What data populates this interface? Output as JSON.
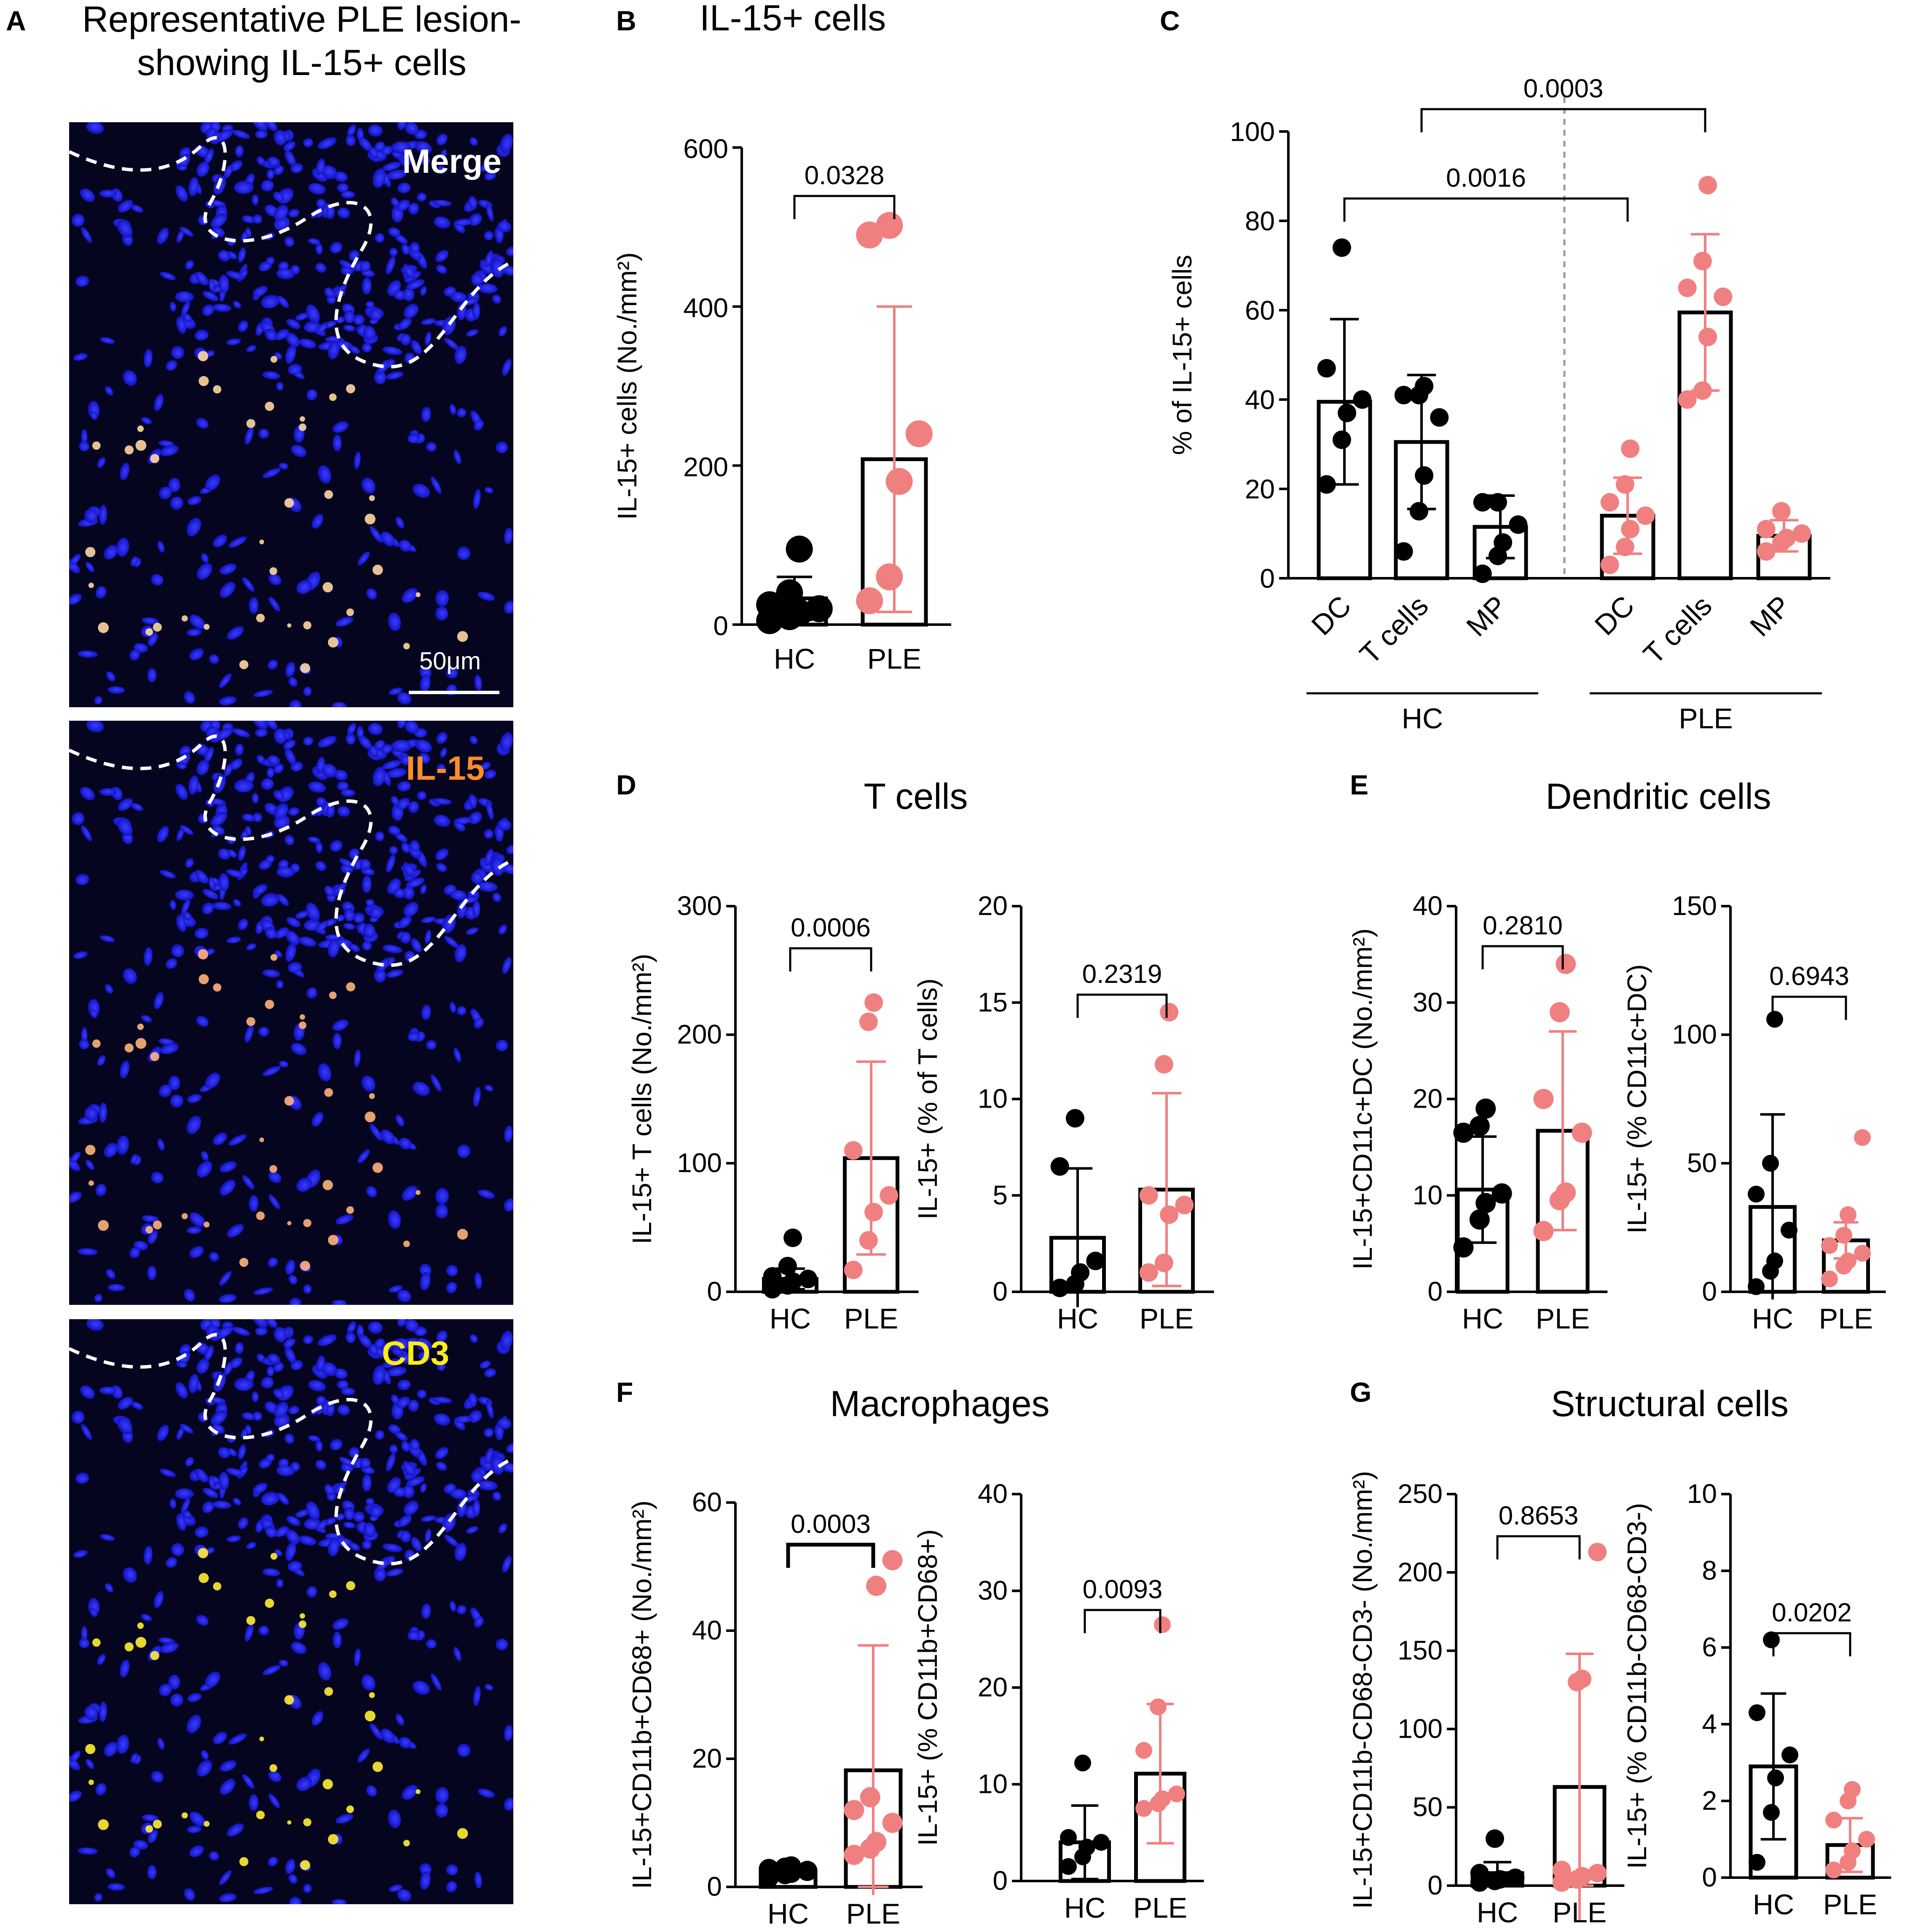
{
  "colors": {
    "hc": "#000000",
    "ple": "#f08080",
    "micro_bg": "#050520",
    "nuclei": "#1e22e6",
    "merge_label": "#ffffff",
    "il15_label": "#ff8c2a",
    "cd3_label": "#ffee11"
  },
  "panel_a": {
    "letter": "A",
    "title_line1": "Representative PLE lesion-",
    "title_line2": "showing IL-15+ cells",
    "images": [
      {
        "label": "Merge",
        "label_color": "#ffffff"
      },
      {
        "label": "IL-15",
        "label_color": "#ff8c2a"
      },
      {
        "label": "CD3",
        "label_color": "#ffee11"
      }
    ],
    "scalebar_label": "50μm"
  },
  "chart_data": [
    {
      "id": "B",
      "letter": "B",
      "type": "bar",
      "title": "IL-15+ cells",
      "ylabel": "IL-15+ cells (No./mm²)",
      "ylim": [
        0,
        600
      ],
      "yticks": [
        0,
        200,
        400,
        600
      ],
      "categories": [
        "HC",
        "PLE"
      ],
      "means": [
        33,
        208
      ],
      "err": [
        27,
        192
      ],
      "points": [
        [
          5,
          10,
          15,
          20,
          25,
          40,
          95
        ],
        [
          30,
          60,
          180,
          240,
          490,
          502
        ]
      ],
      "pvalues": [
        {
          "a": 0,
          "b": 1,
          "label": "0.0328"
        }
      ]
    },
    {
      "id": "C",
      "letter": "C",
      "type": "bar",
      "title": "",
      "ylabel": "% of IL-15+ cells",
      "ylim": [
        0,
        100
      ],
      "yticks": [
        0,
        20,
        40,
        60,
        80,
        100
      ],
      "categories": [
        "DC",
        "T cells",
        "MP",
        "DC",
        "T cells",
        "MP"
      ],
      "groups": [
        {
          "label": "HC",
          "from": 0,
          "to": 2
        },
        {
          "label": "PLE",
          "from": 3,
          "to": 5
        }
      ],
      "group_of_bar": [
        0,
        0,
        0,
        1,
        1,
        1
      ],
      "means": [
        39.5,
        30.5,
        11.5,
        14,
        59.5,
        9.5
      ],
      "err": [
        18.5,
        15,
        7,
        8.5,
        17.5,
        3.5
      ],
      "points": [
        [
          21,
          31,
          37,
          40,
          47,
          74
        ],
        [
          6,
          15,
          23,
          36,
          41,
          41,
          43
        ],
        [
          1,
          5,
          8,
          12,
          17,
          17
        ],
        [
          3,
          7,
          11,
          14,
          17,
          21,
          29
        ],
        [
          40,
          42,
          54,
          63,
          65,
          71,
          88
        ],
        [
          6,
          8,
          9,
          10,
          11,
          15
        ]
      ],
      "pvalues": [
        {
          "a": 0,
          "b": 3,
          "label": "0.0016",
          "level": 85
        },
        {
          "a": 1,
          "b": 4,
          "label": "0.0003",
          "level": 105
        }
      ]
    },
    {
      "id": "D1",
      "letter": "D",
      "type": "bar",
      "title": "T cells",
      "ylabel": "IL-15+ T cells (No./mm²)",
      "ylim": [
        0,
        300
      ],
      "yticks": [
        0,
        100,
        200,
        300
      ],
      "categories": [
        "HC",
        "PLE"
      ],
      "means": [
        10,
        104
      ],
      "err": [
        8,
        75
      ],
      "points": [
        [
          2,
          5,
          8,
          10,
          12,
          20,
          42
        ],
        [
          17,
          40,
          62,
          75,
          110,
          210,
          225
        ]
      ],
      "pvalues": [
        {
          "a": 0,
          "b": 1,
          "label": "0.0006"
        }
      ]
    },
    {
      "id": "D2",
      "letter": "",
      "type": "bar",
      "title": "",
      "ylabel": "IL-15+ (% of T cells)",
      "ylim": [
        0,
        20
      ],
      "yticks": [
        0,
        5,
        10,
        15,
        20
      ],
      "categories": [
        "HC",
        "PLE"
      ],
      "means": [
        2.8,
        5.3
      ],
      "err": [
        3.6,
        5.0
      ],
      "points": [
        [
          0.2,
          0.4,
          1.0,
          1.6,
          6.5,
          9.0
        ],
        [
          1.0,
          1.5,
          4.0,
          4.5,
          5.0,
          11.8,
          14.5
        ]
      ],
      "pvalues": [
        {
          "a": 0,
          "b": 1,
          "label": "0.2319"
        }
      ]
    },
    {
      "id": "E1",
      "letter": "E",
      "type": "bar",
      "title": "Dendritic cells",
      "ylabel": "IL-15+CD11c+DC (No./mm²)",
      "ylim": [
        0,
        40
      ],
      "yticks": [
        0,
        10,
        20,
        30,
        40
      ],
      "categories": [
        "HC",
        "PLE"
      ],
      "means": [
        10.6,
        16.7
      ],
      "err": [
        5.5,
        10.3
      ],
      "points": [
        [
          4.6,
          7.5,
          9.2,
          10.2,
          16.5,
          17.2,
          19.0
        ],
        [
          6.3,
          9.5,
          10.3,
          16.5,
          20.0,
          29.0,
          34.0
        ]
      ],
      "pvalues": [
        {
          "a": 0,
          "b": 1,
          "label": "0.2810"
        }
      ]
    },
    {
      "id": "E2",
      "letter": "",
      "type": "bar",
      "title": "",
      "ylabel": "IL-15+ (% CD11c+DC)",
      "ylim": [
        0,
        150
      ],
      "yticks": [
        0,
        50,
        100,
        150
      ],
      "categories": [
        "HC",
        "PLE"
      ],
      "means": [
        33,
        20
      ],
      "err": [
        36,
        7
      ],
      "points": [
        [
          2,
          8,
          12,
          24,
          38,
          50,
          106
        ],
        [
          5,
          10,
          12,
          15,
          18,
          22,
          30,
          60
        ]
      ],
      "pvalues": [
        {
          "a": 0,
          "b": 1,
          "label": "0.6943"
        }
      ]
    },
    {
      "id": "F1",
      "letter": "F",
      "type": "bar",
      "title": "Macrophages",
      "ylabel": "IL-15+CD11b+CD68+ (No./mm²)",
      "ylim": [
        0,
        60
      ],
      "yticks": [
        0,
        20,
        40,
        60
      ],
      "categories": [
        "HC",
        "PLE"
      ],
      "means": [
        2.5,
        18.2
      ],
      "err": [
        0.7,
        19.5
      ],
      "points": [
        [
          1.5,
          2.0,
          2.2,
          2.5,
          2.8,
          3.0,
          3.2
        ],
        [
          5.0,
          6.0,
          7.0,
          10.0,
          12.0,
          14.0,
          47.0,
          51.0
        ]
      ],
      "pvalues": [
        {
          "a": 0,
          "b": 1,
          "label": "0.0003"
        }
      ]
    },
    {
      "id": "F2",
      "letter": "",
      "type": "bar",
      "title": "",
      "ylabel": "IL-15+ (% CD11b+CD68+)",
      "ylim": [
        0,
        40
      ],
      "yticks": [
        0,
        10,
        20,
        30,
        40
      ],
      "categories": [
        "HC",
        "PLE"
      ],
      "means": [
        4.0,
        11.1
      ],
      "err": [
        3.8,
        7.2
      ],
      "points": [
        [
          1.5,
          2.5,
          3.5,
          4.0,
          4.5,
          12.2
        ],
        [
          7.5,
          8.0,
          8.5,
          9.0,
          13.5,
          18.0,
          26.5
        ]
      ],
      "pvalues": [
        {
          "a": 0,
          "b": 1,
          "label": "0.0093"
        }
      ]
    },
    {
      "id": "G1",
      "letter": "G",
      "type": "bar",
      "title": "Structural cells",
      "ylabel": "IL-15+CD11b-CD68-CD3- (No./mm²)",
      "ylim": [
        0,
        250
      ],
      "yticks": [
        0,
        50,
        100,
        150,
        200,
        250
      ],
      "categories": [
        "HC",
        "PLE"
      ],
      "means": [
        8,
        63
      ],
      "err": [
        7,
        85
      ],
      "points": [
        [
          2,
          3,
          4,
          5,
          8,
          30
        ],
        [
          2,
          4,
          6,
          8,
          10,
          130,
          132,
          213
        ]
      ],
      "pvalues": [
        {
          "a": 0,
          "b": 1,
          "label": "0.8653"
        }
      ]
    },
    {
      "id": "G2",
      "letter": "",
      "type": "bar",
      "title": "",
      "ylabel": "IL-15+ (% CD11b-CD68-CD3-)",
      "ylim": [
        0,
        10
      ],
      "yticks": [
        0,
        2,
        4,
        6,
        8,
        10
      ],
      "categories": [
        "HC",
        "PLE"
      ],
      "means": [
        2.9,
        0.85
      ],
      "err": [
        1.9,
        0.7
      ],
      "points": [
        [
          0.4,
          1.7,
          2.6,
          3.2,
          4.3,
          6.2
        ],
        [
          0.2,
          0.4,
          0.7,
          1.0,
          1.5,
          2.0,
          2.3
        ]
      ],
      "pvalues": [
        {
          "a": 0,
          "b": 1,
          "label": "0.0202"
        }
      ]
    }
  ]
}
